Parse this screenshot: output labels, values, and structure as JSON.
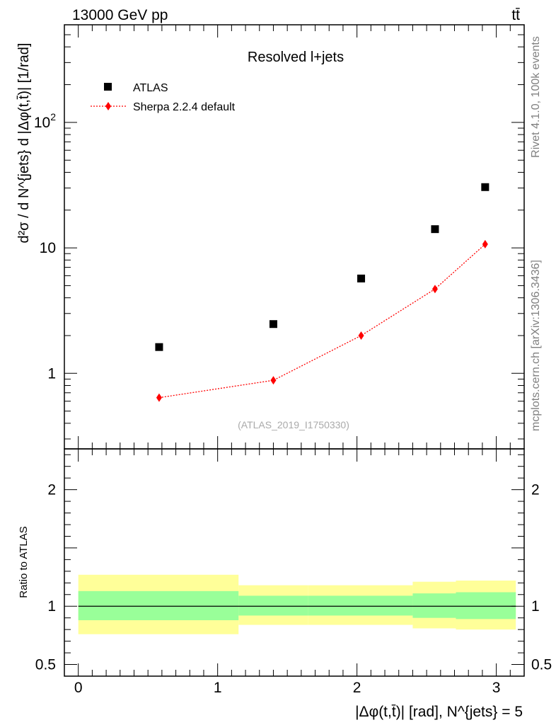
{
  "header": {
    "energy_label": "13000 GeV pp",
    "process_label": "tt̄"
  },
  "side_labels": {
    "rivet": "Rivet 4.1.0,  100k events",
    "mcplots": "mcplots.cern.ch [arXiv:1306.3436]"
  },
  "colors": {
    "mc": "#ff0000",
    "band_inner": "#99ff99",
    "band_outer": "#ffff99",
    "data": "#000000"
  },
  "chart_data": [
    {
      "type": "scatter",
      "title": "Resolved l+jets",
      "analysis_id": "(ATLAS_2019_I1750330)",
      "ylabel": "d²σ / d N^{jets} d |Δφ(t,t̄)| [1/rad]",
      "xlabel": "|Δφ(t,t̄)| [rad], N^{jets} = 5",
      "yscale": "log",
      "xlim": [
        -0.1,
        3.2
      ],
      "ylim": [
        0.25,
        600
      ],
      "y_ticks": [
        {
          "value": 1,
          "label": "1"
        },
        {
          "value": 10,
          "label": "10"
        },
        {
          "value": 100,
          "label": "10²"
        }
      ],
      "legend_position": "top-left",
      "series": [
        {
          "name": "ATLAS",
          "marker": "square",
          "x": [
            0.58,
            1.4,
            2.03,
            2.56,
            2.92
          ],
          "y": [
            1.62,
            2.47,
            5.7,
            14.1,
            30.5
          ]
        },
        {
          "name": "Sherpa 2.2.4 default",
          "marker": "diamond",
          "line": "dotted",
          "x": [
            0.58,
            1.4,
            2.03,
            2.56,
            2.92
          ],
          "y": [
            0.64,
            0.88,
            2.0,
            4.7,
            10.7
          ]
        }
      ]
    },
    {
      "type": "band",
      "ylabel": "Ratio to ATLAS",
      "ylim": [
        0.4,
        2.35
      ],
      "xlim": [
        -0.1,
        3.2
      ],
      "x_ticks": [
        {
          "value": 0,
          "label": "0"
        },
        {
          "value": 1,
          "label": "1"
        },
        {
          "value": 2,
          "label": "2"
        },
        {
          "value": 3,
          "label": "3"
        }
      ],
      "y_ticks": [
        {
          "value": 0.5,
          "label": "0.5"
        },
        {
          "value": 1,
          "label": "1"
        },
        {
          "value": 2,
          "label": "2"
        }
      ],
      "reference_line": 1,
      "bins": [
        {
          "x_low": 0.0,
          "x_high": 1.15,
          "inner_low": 0.88,
          "inner_high": 1.13,
          "outer_low": 0.76,
          "outer_high": 1.27
        },
        {
          "x_low": 1.15,
          "x_high": 1.65,
          "inner_low": 0.92,
          "inner_high": 1.09,
          "outer_low": 0.84,
          "outer_high": 1.18
        },
        {
          "x_low": 1.65,
          "x_high": 2.4,
          "inner_low": 0.92,
          "inner_high": 1.09,
          "outer_low": 0.84,
          "outer_high": 1.18
        },
        {
          "x_low": 2.4,
          "x_high": 2.71,
          "inner_low": 0.9,
          "inner_high": 1.11,
          "outer_low": 0.81,
          "outer_high": 1.21
        },
        {
          "x_low": 2.71,
          "x_high": 3.14,
          "inner_low": 0.89,
          "inner_high": 1.12,
          "outer_low": 0.8,
          "outer_high": 1.22
        }
      ]
    }
  ]
}
